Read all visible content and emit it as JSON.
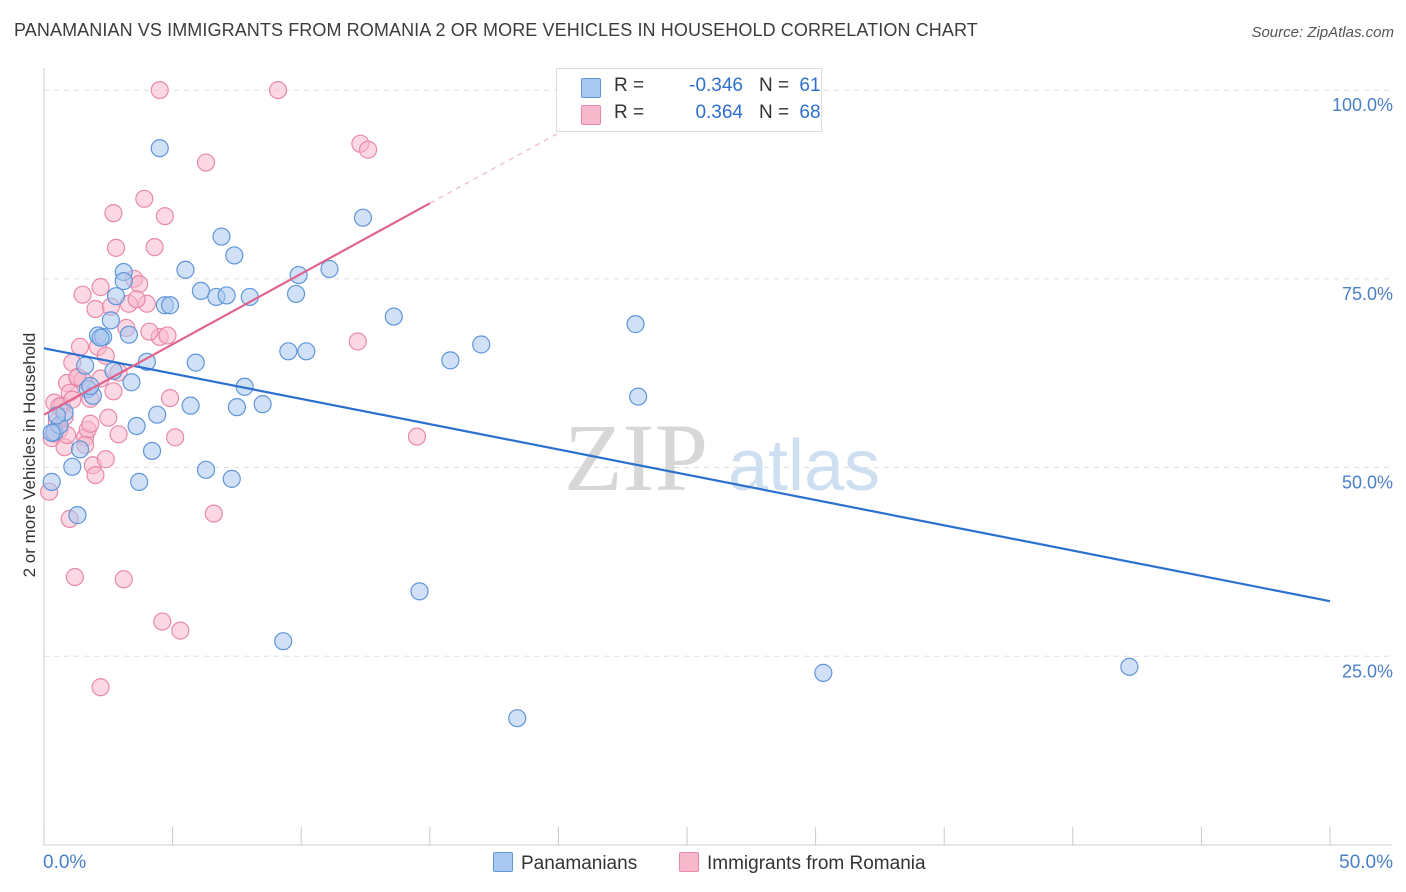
{
  "header": {
    "title": "PANAMANIAN VS IMMIGRANTS FROM ROMANIA 2 OR MORE VEHICLES IN HOUSEHOLD CORRELATION CHART",
    "source": "Source: ZipAtlas.com"
  },
  "watermark": {
    "zip": "ZIP",
    "atlas": "atlas"
  },
  "legend": {
    "rows": [
      {
        "r_label": "R =",
        "r_value": "-0.346",
        "n_label": "N =",
        "n_value": "61"
      },
      {
        "r_label": "R =",
        "r_value": "0.364",
        "n_label": "N =",
        "n_value": "68"
      }
    ]
  },
  "bottom_legend": {
    "series1": "Panamanians",
    "series2": "Immigrants from Romania"
  },
  "colors": {
    "blue_fill": "#a9c8f0",
    "blue_stroke": "#5f96d9",
    "blue_line": "#2c70cf",
    "pink_fill": "#f7b8cc",
    "pink_stroke": "#e88aa8",
    "pink_line": "#e0648e",
    "grid": "#dddddd",
    "axis_text": "#4a80c8"
  },
  "chart_data": {
    "type": "scatter",
    "title": "PANAMANIAN VS IMMIGRANTS FROM ROMANIA 2 OR MORE VEHICLES IN HOUSEHOLD CORRELATION CHART",
    "xlabel": "",
    "ylabel": "2 or more Vehicles in Household",
    "xlim": [
      0,
      50
    ],
    "ylim": [
      0,
      102
    ],
    "y_ticks": [
      25,
      50,
      75,
      100
    ],
    "y_tick_labels": [
      "25.0%",
      "50.0%",
      "75.0%",
      "100.0%"
    ],
    "x_tick_labels": [
      "0.0%",
      "50.0%"
    ],
    "series": [
      {
        "name": "Panamanians",
        "r": -0.346,
        "n": 61,
        "trend": {
          "x": [
            0,
            50
          ],
          "y": [
            65.8,
            32.3
          ]
        },
        "points": [
          [
            0.3,
            48.1
          ],
          [
            0.4,
            54.7
          ],
          [
            0.6,
            55.6
          ],
          [
            0.8,
            57.3
          ],
          [
            1.1,
            50.1
          ],
          [
            1.3,
            43.7
          ],
          [
            1.4,
            52.4
          ],
          [
            1.6,
            63.5
          ],
          [
            1.7,
            60.4
          ],
          [
            1.9,
            59.5
          ],
          [
            2.1,
            67.5
          ],
          [
            2.3,
            67.3
          ],
          [
            2.6,
            69.5
          ],
          [
            2.7,
            62.8
          ],
          [
            2.8,
            72.7
          ],
          [
            3.1,
            75.9
          ],
          [
            3.1,
            74.7
          ],
          [
            3.3,
            67.6
          ],
          [
            3.4,
            61.3
          ],
          [
            3.6,
            55.5
          ],
          [
            3.7,
            48.1
          ],
          [
            4.0,
            64.0
          ],
          [
            4.2,
            52.2
          ],
          [
            4.4,
            57.0
          ],
          [
            4.5,
            92.3
          ],
          [
            4.7,
            71.5
          ],
          [
            4.9,
            71.5
          ],
          [
            5.5,
            76.2
          ],
          [
            5.7,
            58.2
          ],
          [
            5.9,
            63.9
          ],
          [
            6.1,
            73.4
          ],
          [
            6.3,
            49.7
          ],
          [
            6.7,
            72.6
          ],
          [
            6.9,
            80.6
          ],
          [
            7.1,
            72.8
          ],
          [
            7.3,
            48.5
          ],
          [
            7.4,
            78.1
          ],
          [
            7.5,
            58.0
          ],
          [
            7.8,
            60.7
          ],
          [
            8.0,
            72.6
          ],
          [
            8.5,
            58.4
          ],
          [
            9.3,
            27.0
          ],
          [
            9.5,
            65.4
          ],
          [
            9.8,
            73.0
          ],
          [
            9.9,
            75.5
          ],
          [
            10.2,
            65.4
          ],
          [
            11.1,
            76.3
          ],
          [
            12.4,
            83.1
          ],
          [
            13.6,
            70.0
          ],
          [
            14.6,
            33.6
          ],
          [
            15.8,
            64.2
          ],
          [
            17.0,
            66.3
          ],
          [
            18.4,
            16.8
          ],
          [
            23.0,
            69.0
          ],
          [
            23.1,
            59.4
          ],
          [
            30.3,
            22.8
          ],
          [
            0.3,
            54.6
          ],
          [
            0.5,
            56.9
          ],
          [
            1.8,
            60.8
          ],
          [
            2.2,
            67.2
          ],
          [
            42.2,
            23.6
          ]
        ]
      },
      {
        "name": "Immigrants from Romania",
        "r": 0.364,
        "n": 68,
        "trend": {
          "x": [
            0,
            15.0
          ],
          "y": [
            57.0,
            85.0
          ]
        },
        "trend_dashed": {
          "x": [
            15.0,
            20.0
          ],
          "y": [
            85.0,
            94.3
          ]
        },
        "points": [
          [
            0.2,
            46.8
          ],
          [
            0.3,
            53.9
          ],
          [
            0.4,
            58.6
          ],
          [
            0.5,
            56.1
          ],
          [
            0.6,
            55.0
          ],
          [
            0.7,
            58.2
          ],
          [
            0.8,
            52.7
          ],
          [
            0.9,
            61.2
          ],
          [
            1.0,
            43.2
          ],
          [
            1.0,
            59.9
          ],
          [
            1.1,
            63.9
          ],
          [
            1.2,
            35.5
          ],
          [
            1.3,
            61.9
          ],
          [
            1.4,
            66.0
          ],
          [
            1.5,
            72.9
          ],
          [
            1.6,
            54.0
          ],
          [
            1.7,
            55.0
          ],
          [
            1.8,
            55.8
          ],
          [
            1.9,
            50.3
          ],
          [
            2.0,
            49.0
          ],
          [
            2.0,
            71.0
          ],
          [
            2.1,
            66.0
          ],
          [
            2.2,
            73.9
          ],
          [
            2.4,
            51.1
          ],
          [
            2.5,
            56.6
          ],
          [
            2.6,
            71.3
          ],
          [
            2.7,
            60.1
          ],
          [
            2.7,
            83.7
          ],
          [
            2.8,
            79.1
          ],
          [
            2.9,
            54.4
          ],
          [
            3.1,
            35.2
          ],
          [
            3.2,
            68.5
          ],
          [
            3.3,
            71.7
          ],
          [
            3.5,
            75.0
          ],
          [
            3.7,
            74.3
          ],
          [
            3.9,
            85.6
          ],
          [
            4.0,
            71.7
          ],
          [
            4.3,
            79.2
          ],
          [
            4.5,
            67.3
          ],
          [
            4.6,
            29.6
          ],
          [
            4.7,
            83.3
          ],
          [
            4.8,
            67.5
          ],
          [
            4.9,
            59.2
          ],
          [
            5.1,
            54.0
          ],
          [
            5.3,
            28.4
          ],
          [
            2.2,
            20.9
          ],
          [
            6.3,
            90.4
          ],
          [
            6.6,
            43.9
          ],
          [
            9.1,
            100.0
          ],
          [
            4.5,
            100.0
          ],
          [
            12.3,
            92.9
          ],
          [
            12.6,
            92.1
          ],
          [
            12.2,
            66.7
          ],
          [
            14.5,
            54.1
          ],
          [
            0.6,
            58.1
          ],
          [
            1.5,
            61.6
          ],
          [
            2.2,
            61.8
          ],
          [
            0.4,
            54.5
          ],
          [
            0.8,
            56.7
          ],
          [
            1.1,
            59.0
          ],
          [
            1.3,
            62.0
          ],
          [
            1.8,
            59.1
          ],
          [
            2.4,
            64.8
          ],
          [
            2.9,
            62.6
          ],
          [
            3.6,
            72.3
          ],
          [
            0.9,
            54.3
          ],
          [
            1.6,
            53.0
          ],
          [
            4.1,
            68.0
          ]
        ]
      }
    ]
  }
}
